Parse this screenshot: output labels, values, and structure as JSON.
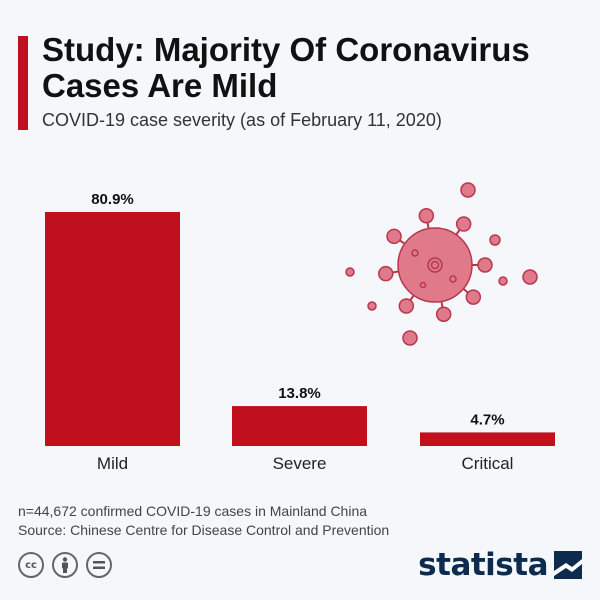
{
  "header": {
    "title": "Study: Majority Of Coronavirus Cases Are Mild",
    "subtitle": "COVID-19 case severity (as of February 11, 2020)"
  },
  "chart_data": {
    "type": "bar",
    "title": "Study: Majority Of Coronavirus Cases Are Mild",
    "subtitle": "COVID-19 case severity (as of February 11, 2020)",
    "categories": [
      "Mild",
      "Severe",
      "Critical"
    ],
    "values": [
      80.9,
      13.8,
      4.7
    ],
    "value_labels": [
      "80.9%",
      "13.8%",
      "4.7%"
    ],
    "xlabel": "",
    "ylabel": "",
    "ylim": [
      0,
      80.9
    ],
    "grid": false,
    "legend": "none",
    "bar_color": "#c0101d"
  },
  "footer": {
    "note": "n=44,672 confirmed COVID-19 cases in Mainland China",
    "source": "Source: Chinese Centre for Disease Control and Prevention",
    "brand": "statista"
  },
  "colors": {
    "accent": "#c0101d",
    "virus": "#e07a8a",
    "virus_stroke": "#b8374c",
    "brand": "#0d2b4e"
  },
  "icons": [
    "cc-icon",
    "attribution-icon",
    "no-derivatives-icon",
    "virus-illustration",
    "statista-logo-icon"
  ]
}
